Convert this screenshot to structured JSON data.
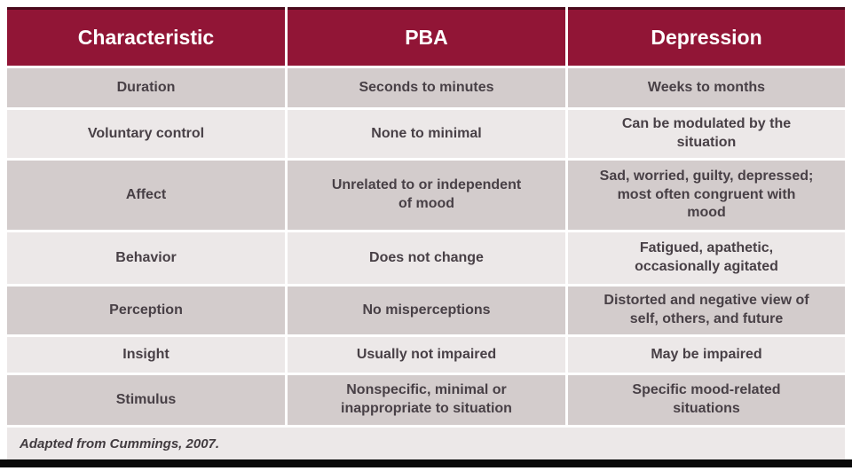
{
  "table": {
    "columns": {
      "characteristic": "Characteristic",
      "pba": "PBA",
      "depression": "Depression"
    },
    "rows": [
      {
        "characteristic": "Duration",
        "pba": "Seconds to minutes",
        "depression": "Weeks to months"
      },
      {
        "characteristic": "Voluntary control",
        "pba": "None to minimal",
        "depression": "Can be modulated by the situation"
      },
      {
        "characteristic": "Affect",
        "pba": "Unrelated to or independent of mood",
        "depression": "Sad, worried, guilty, depressed; most often congruent with mood"
      },
      {
        "characteristic": "Behavior",
        "pba": "Does not change",
        "depression": "Fatigued, apathetic, occasionally agitated"
      },
      {
        "characteristic": "Perception",
        "pba": "No misperceptions",
        "depression": "Distorted and negative view of self, others, and future"
      },
      {
        "characteristic": "Insight",
        "pba": "Usually not impaired",
        "depression": "May be impaired"
      },
      {
        "characteristic": "Stimulus",
        "pba": "Nonspecific, minimal or inappropriate to situation",
        "depression": "Specific mood-related situations"
      }
    ],
    "footnote": "Adapted from Cummings, 2007."
  },
  "colors": {
    "header_bg": "#911536",
    "header_text": "#ffffff",
    "row_dark": "#d3cccc",
    "row_light": "#ece8e8",
    "body_text": "#484046",
    "bottom_bar": "#0a0a0a"
  }
}
